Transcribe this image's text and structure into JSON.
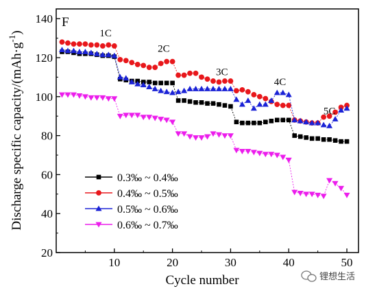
{
  "panel_label": "F",
  "watermark": {
    "text": "锂想生活",
    "icon": "wechat-icon"
  },
  "chart_data": {
    "type": "scatter",
    "title": "",
    "xlabel": "Cycle number",
    "ylabel": "Discharge specific capacity/(mAh·g",
    "ylabel_sup": "-1",
    "ylabel_close": ")",
    "xlim": [
      0,
      52
    ],
    "ylim": [
      20,
      145
    ],
    "xticks": [
      10,
      20,
      30,
      40,
      50
    ],
    "yticks": [
      20,
      40,
      60,
      80,
      100,
      120,
      140
    ],
    "legend_position": "lower-left",
    "annotations": [
      {
        "text": "1C",
        "x": 8.5,
        "y": 131
      },
      {
        "text": "2C",
        "x": 18.5,
        "y": 123
      },
      {
        "text": "3C",
        "x": 28.5,
        "y": 111
      },
      {
        "text": "4C",
        "x": 38.5,
        "y": 106
      },
      {
        "text": "5C",
        "x": 47,
        "y": 91
      }
    ],
    "x": [
      1,
      2,
      3,
      4,
      5,
      6,
      7,
      8,
      9,
      10,
      11,
      12,
      13,
      14,
      15,
      16,
      17,
      18,
      19,
      20,
      21,
      22,
      23,
      24,
      25,
      26,
      27,
      28,
      29,
      30,
      31,
      32,
      33,
      34,
      35,
      36,
      37,
      38,
      39,
      40,
      41,
      42,
      43,
      44,
      45,
      46,
      47,
      48,
      49,
      50
    ],
    "series": [
      {
        "name": "0.3‰ ~ 0.4‰",
        "marker": "square",
        "color": "#000000",
        "values": [
          123,
          123,
          122.5,
          122,
          122,
          122,
          121.5,
          121,
          121,
          120.5,
          109,
          108.5,
          108,
          108,
          107.5,
          107.5,
          107,
          107,
          107,
          107,
          98,
          98,
          97.5,
          97,
          97,
          96.5,
          96.5,
          96,
          95.5,
          95,
          87,
          86.5,
          86.5,
          86.5,
          86.5,
          87,
          87.5,
          88,
          88,
          88,
          80,
          79.5,
          79,
          78.5,
          78.5,
          78,
          78,
          77.5,
          77,
          77
        ]
      },
      {
        "name": "0.4‰ ~ 0.5‰",
        "marker": "circle",
        "color": "#e8171b",
        "values": [
          128,
          127.5,
          127,
          127,
          127,
          126.5,
          126.5,
          126,
          126.5,
          126,
          119,
          118.5,
          117.5,
          116.5,
          116,
          115,
          115,
          117,
          118,
          118,
          111,
          111,
          112,
          112,
          110,
          109,
          108,
          107.5,
          108,
          108,
          103,
          103.5,
          102.5,
          101,
          100,
          99,
          97.5,
          96,
          95.5,
          95.5,
          88,
          87.5,
          87,
          86.5,
          86.5,
          89.5,
          90,
          92,
          94.5,
          95.5
        ]
      },
      {
        "name": "0.5‰ ~ 0.6‰",
        "marker": "triangle-up",
        "color": "#1a22d6",
        "values": [
          124,
          123.5,
          123.5,
          123,
          123,
          122.5,
          122,
          121.5,
          121.5,
          121,
          110,
          109.5,
          107.5,
          106.5,
          106,
          105,
          104,
          103,
          102.5,
          102,
          102.5,
          103,
          104,
          104,
          104,
          104,
          104,
          104,
          104,
          104,
          98.5,
          96,
          98,
          94,
          96,
          96,
          98,
          102,
          102,
          101,
          88,
          87.5,
          87,
          86.5,
          86.5,
          85.5,
          85,
          88.5,
          93,
          94
        ]
      },
      {
        "name": "0.6‰ ~ 0.7‰",
        "marker": "triangle-down",
        "color": "#ec1dec",
        "values": [
          101,
          101,
          101,
          100.5,
          100,
          99.5,
          99.5,
          99.5,
          99,
          99,
          90,
          90.5,
          90.5,
          90.5,
          89.5,
          89.5,
          89,
          88.5,
          88,
          87,
          81,
          81,
          79.5,
          79,
          79,
          79.5,
          81,
          80.5,
          80,
          80,
          72.5,
          72,
          72,
          71.5,
          71,
          70.5,
          70.5,
          70,
          69,
          67.5,
          51,
          50.5,
          50,
          50,
          49.5,
          49,
          57,
          55.5,
          53,
          49.5
        ]
      }
    ]
  }
}
